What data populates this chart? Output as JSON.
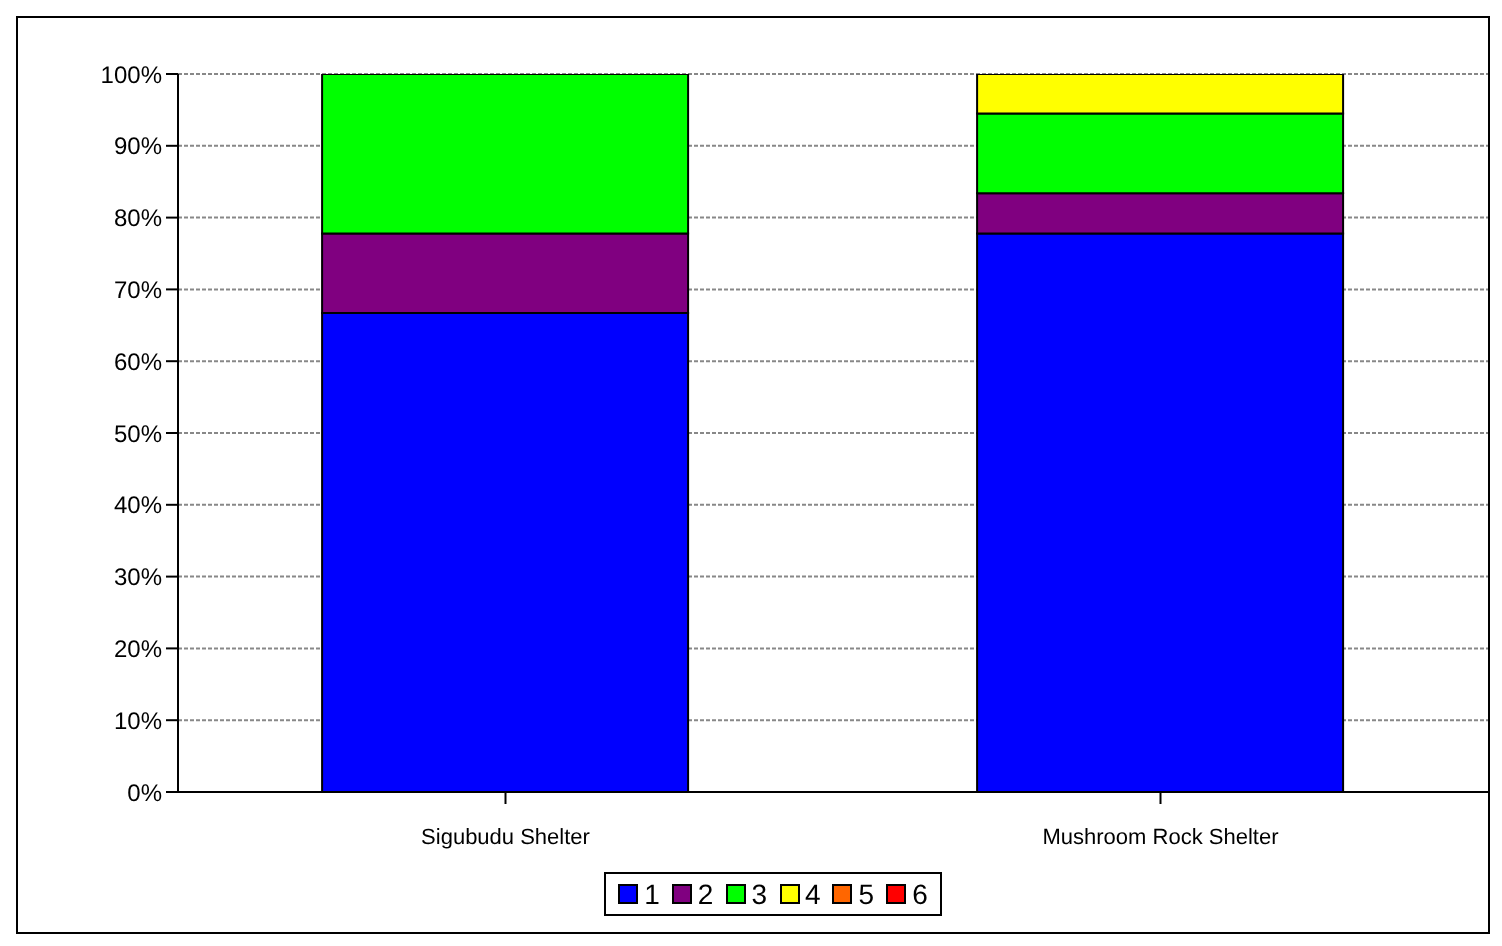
{
  "chart_data": {
    "type": "bar",
    "stacked": true,
    "categories": [
      "Sigubudu Shelter",
      "Mushroom Rock Shelter"
    ],
    "series": [
      {
        "name": "1",
        "color": "#0000ff",
        "values": [
          66.7,
          77.8
        ]
      },
      {
        "name": "2",
        "color": "#800080",
        "values": [
          11.1,
          5.6
        ]
      },
      {
        "name": "3",
        "color": "#00ff00",
        "values": [
          22.2,
          11.1
        ]
      },
      {
        "name": "4",
        "color": "#ffff00",
        "values": [
          0,
          5.5
        ]
      },
      {
        "name": "5",
        "color": "#ff6600",
        "values": [
          0,
          0
        ]
      },
      {
        "name": "6",
        "color": "#ff0000",
        "values": [
          0,
          0
        ]
      }
    ],
    "ylim": [
      0,
      100
    ],
    "yticks": [
      {
        "value": 0,
        "label": "0%"
      },
      {
        "value": 10,
        "label": "10%"
      },
      {
        "value": 20,
        "label": "20%"
      },
      {
        "value": 30,
        "label": "30%"
      },
      {
        "value": 40,
        "label": "40%"
      },
      {
        "value": 50,
        "label": "50%"
      },
      {
        "value": 60,
        "label": "60%"
      },
      {
        "value": 70,
        "label": "70%"
      },
      {
        "value": 80,
        "label": "80%"
      },
      {
        "value": 90,
        "label": "90%"
      },
      {
        "value": 100,
        "label": "100%"
      }
    ],
    "grid": "y",
    "legend": "bottom"
  }
}
